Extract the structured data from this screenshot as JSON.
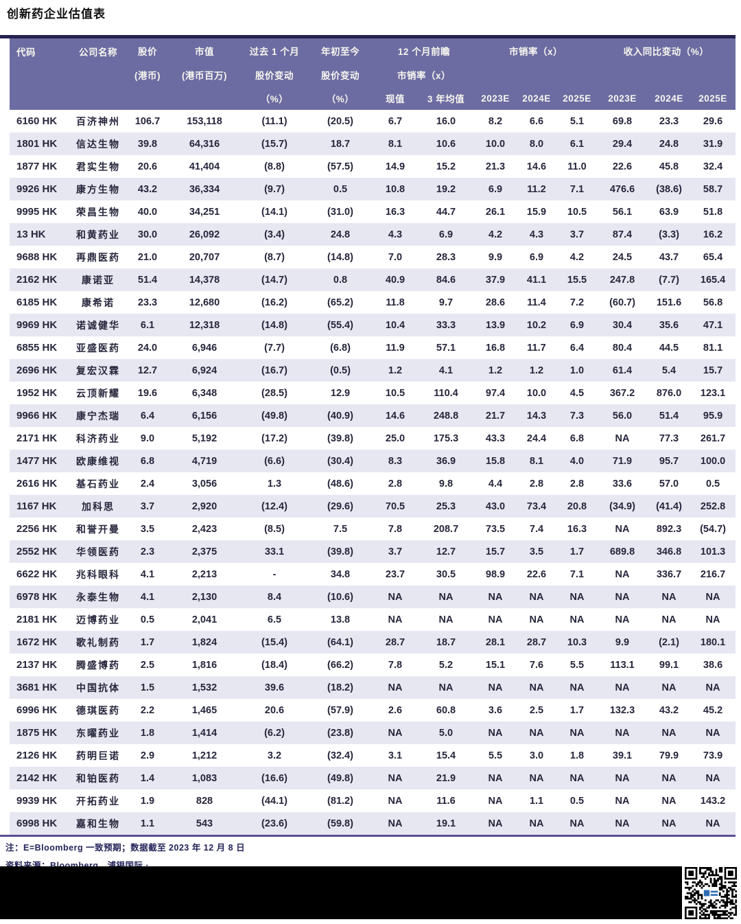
{
  "title": "创新药企业估值表",
  "table": {
    "header": {
      "code": "代码",
      "company": "公司名称",
      "price_l1": "股价",
      "price_l2": "(港币)",
      "mktcap_l1": "市值",
      "mktcap_l2": "(港币百万)",
      "m1_l1": "过去 1 个月",
      "m1_l2": "股价变动",
      "m1_l3": "（%）",
      "ytd_l1": "年初至今",
      "ytd_l2": "股价变动",
      "ytd_l3": "（%）",
      "fwd_l1": "12 个月前瞻",
      "fwd_l2": "市销率（x）",
      "fwd_cur": "现值",
      "fwd_avg": "3 年均值",
      "ps_l1": "市销率（x）",
      "ps_2023": "2023E",
      "ps_2024": "2024E",
      "ps_2025": "2025E",
      "rev_l1": "收入同比变动（%）",
      "rev_2023": "2023E",
      "rev_2024": "2024E",
      "rev_2025": "2025E"
    },
    "rows": [
      [
        "6160 HK",
        "百济神州",
        "106.7",
        "153,118",
        "(11.1)",
        "(20.5)",
        "6.7",
        "16.0",
        "8.2",
        "6.6",
        "5.1",
        "69.8",
        "23.3",
        "29.6"
      ],
      [
        "1801 HK",
        "信达生物",
        "39.8",
        "64,316",
        "(15.7)",
        "18.7",
        "8.1",
        "10.6",
        "10.0",
        "8.0",
        "6.1",
        "29.4",
        "24.8",
        "31.9"
      ],
      [
        "1877 HK",
        "君实生物",
        "20.6",
        "41,404",
        "(8.8)",
        "(57.5)",
        "14.9",
        "15.2",
        "21.3",
        "14.6",
        "11.0",
        "22.6",
        "45.8",
        "32.4"
      ],
      [
        "9926 HK",
        "康方生物",
        "43.2",
        "36,334",
        "(9.7)",
        "0.5",
        "10.8",
        "19.2",
        "6.9",
        "11.2",
        "7.1",
        "476.6",
        "(38.6)",
        "58.7"
      ],
      [
        "9995 HK",
        "荣昌生物",
        "40.0",
        "34,251",
        "(14.1)",
        "(31.0)",
        "16.3",
        "44.7",
        "26.1",
        "15.9",
        "10.5",
        "56.1",
        "63.9",
        "51.8"
      ],
      [
        "13 HK",
        "和黄药业",
        "30.0",
        "26,092",
        "(3.4)",
        "24.8",
        "4.3",
        "6.9",
        "4.2",
        "4.3",
        "3.7",
        "87.4",
        "(3.3)",
        "16.2"
      ],
      [
        "9688 HK",
        "再鼎医药",
        "21.0",
        "20,707",
        "(8.7)",
        "(14.8)",
        "7.0",
        "28.3",
        "9.9",
        "6.9",
        "4.2",
        "24.5",
        "43.7",
        "65.4"
      ],
      [
        "2162 HK",
        "康诺亚",
        "51.4",
        "14,378",
        "(14.7)",
        "0.8",
        "40.9",
        "84.6",
        "37.9",
        "41.1",
        "15.5",
        "247.8",
        "(7.7)",
        "165.4"
      ],
      [
        "6185 HK",
        "康希诺",
        "23.3",
        "12,680",
        "(16.2)",
        "(65.2)",
        "11.8",
        "9.7",
        "28.6",
        "11.4",
        "7.2",
        "(60.7)",
        "151.6",
        "56.8"
      ],
      [
        "9969 HK",
        "诺诚健华",
        "6.1",
        "12,318",
        "(14.8)",
        "(55.4)",
        "10.4",
        "33.3",
        "13.9",
        "10.2",
        "6.9",
        "30.4",
        "35.6",
        "47.1"
      ],
      [
        "6855 HK",
        "亚盛医药",
        "24.0",
        "6,946",
        "(7.7)",
        "(6.8)",
        "11.9",
        "57.1",
        "16.8",
        "11.7",
        "6.4",
        "80.4",
        "44.5",
        "81.1"
      ],
      [
        "2696 HK",
        "复宏汉霖",
        "12.7",
        "6,924",
        "(16.7)",
        "(0.5)",
        "1.2",
        "4.1",
        "1.2",
        "1.2",
        "1.0",
        "61.4",
        "5.4",
        "15.7"
      ],
      [
        "1952 HK",
        "云顶新耀",
        "19.6",
        "6,348",
        "(28.5)",
        "12.9",
        "10.5",
        "110.4",
        "97.4",
        "10.0",
        "4.5",
        "367.2",
        "876.0",
        "123.1"
      ],
      [
        "9966 HK",
        "康宁杰瑞",
        "6.4",
        "6,156",
        "(49.8)",
        "(40.9)",
        "14.6",
        "248.8",
        "21.7",
        "14.3",
        "7.3",
        "56.0",
        "51.4",
        "95.9"
      ],
      [
        "2171 HK",
        "科济药业",
        "9.0",
        "5,192",
        "(17.2)",
        "(39.8)",
        "25.0",
        "175.3",
        "43.3",
        "24.4",
        "6.8",
        "NA",
        "77.3",
        "261.7"
      ],
      [
        "1477 HK",
        "欧康维视",
        "6.8",
        "4,719",
        "(6.6)",
        "(30.4)",
        "8.3",
        "36.9",
        "15.8",
        "8.1",
        "4.0",
        "71.9",
        "95.7",
        "100.0"
      ],
      [
        "2616 HK",
        "基石药业",
        "2.4",
        "3,056",
        "1.3",
        "(48.6)",
        "2.8",
        "9.8",
        "4.4",
        "2.8",
        "2.8",
        "33.6",
        "57.0",
        "0.5"
      ],
      [
        "1167 HK",
        "加科思",
        "3.7",
        "2,920",
        "(12.4)",
        "(29.6)",
        "70.5",
        "25.3",
        "43.0",
        "73.4",
        "20.8",
        "(34.9)",
        "(41.4)",
        "252.8"
      ],
      [
        "2256 HK",
        "和誉开曼",
        "3.5",
        "2,423",
        "(8.5)",
        "7.5",
        "7.8",
        "208.7",
        "73.5",
        "7.4",
        "16.3",
        "NA",
        "892.3",
        "(54.7)"
      ],
      [
        "2552 HK",
        "华领医药",
        "2.3",
        "2,375",
        "33.1",
        "(39.8)",
        "3.7",
        "12.7",
        "15.7",
        "3.5",
        "1.7",
        "689.8",
        "346.8",
        "101.3"
      ],
      [
        "6622 HK",
        "兆科眼科",
        "4.1",
        "2,213",
        "-",
        "34.8",
        "23.7",
        "30.5",
        "98.9",
        "22.6",
        "7.1",
        "NA",
        "336.7",
        "216.7"
      ],
      [
        "6978 HK",
        "永泰生物",
        "4.1",
        "2,130",
        "8.4",
        "(10.6)",
        "NA",
        "NA",
        "NA",
        "NA",
        "NA",
        "NA",
        "NA",
        "NA"
      ],
      [
        "2181 HK",
        "迈博药业",
        "0.5",
        "2,041",
        "6.5",
        "13.8",
        "NA",
        "NA",
        "NA",
        "NA",
        "NA",
        "NA",
        "NA",
        "NA"
      ],
      [
        "1672 HK",
        "歌礼制药",
        "1.7",
        "1,824",
        "(15.4)",
        "(64.1)",
        "28.7",
        "18.7",
        "28.1",
        "28.7",
        "10.3",
        "9.9",
        "(2.1)",
        "180.1"
      ],
      [
        "2137 HK",
        "腾盛博药",
        "2.5",
        "1,816",
        "(18.4)",
        "(66.2)",
        "7.8",
        "5.2",
        "15.1",
        "7.6",
        "5.5",
        "113.1",
        "99.1",
        "38.6"
      ],
      [
        "3681 HK",
        "中国抗体",
        "1.5",
        "1,532",
        "39.6",
        "(18.2)",
        "NA",
        "NA",
        "NA",
        "NA",
        "NA",
        "NA",
        "NA",
        "NA"
      ],
      [
        "6996 HK",
        "德琪医药",
        "2.2",
        "1,465",
        "20.6",
        "(57.9)",
        "2.6",
        "60.8",
        "3.6",
        "2.5",
        "1.7",
        "132.3",
        "43.2",
        "45.2"
      ],
      [
        "1875 HK",
        "东曜药业",
        "1.8",
        "1,414",
        "(6.2)",
        "(23.8)",
        "NA",
        "5.0",
        "NA",
        "NA",
        "NA",
        "NA",
        "NA",
        "NA"
      ],
      [
        "2126 HK",
        "药明巨诺",
        "2.9",
        "1,212",
        "3.2",
        "(32.4)",
        "3.1",
        "15.4",
        "5.5",
        "3.0",
        "1.8",
        "39.1",
        "79.9",
        "73.9"
      ],
      [
        "2142 HK",
        "和铂医药",
        "1.4",
        "1,083",
        "(16.6)",
        "(49.8)",
        "NA",
        "21.9",
        "NA",
        "NA",
        "NA",
        "NA",
        "NA",
        "NA"
      ],
      [
        "9939 HK",
        "开拓药业",
        "1.9",
        "828",
        "(44.1)",
        "(81.2)",
        "NA",
        "11.6",
        "NA",
        "1.1",
        "0.5",
        "NA",
        "NA",
        "143.2"
      ],
      [
        "6998 HK",
        "嘉和生物",
        "1.1",
        "543",
        "(23.6)",
        "(59.8)",
        "NA",
        "19.1",
        "NA",
        "NA",
        "NA",
        "NA",
        "NA",
        "NA"
      ]
    ]
  },
  "notes": [
    "注：E=Bloomberg 一致预期；数据截至 2023 年 12 月 8 日",
    "资料来源：Bloomberg、浦银国际 ·"
  ],
  "colors": {
    "header_bg": "#6c6ca2",
    "header_text": "#f7f6ef",
    "stripe_row": "#e7e7f1",
    "top_border": "#23224f",
    "bottom_border": "#5b4d94",
    "body_text": "#26263c",
    "note_text": "#232359",
    "redaction_bar": "#000000"
  }
}
